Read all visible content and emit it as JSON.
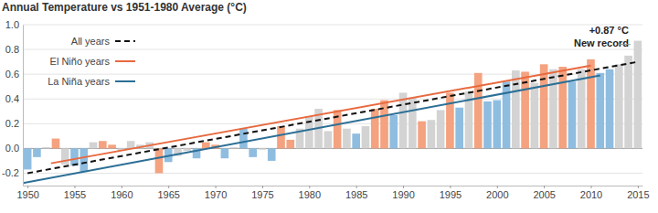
{
  "chart_data": {
    "type": "bar",
    "title": "Annual Temperature vs 1951-1980 Average (°C)",
    "x": [
      1950,
      1951,
      1952,
      1953,
      1954,
      1955,
      1956,
      1957,
      1958,
      1959,
      1960,
      1961,
      1962,
      1963,
      1964,
      1965,
      1966,
      1967,
      1968,
      1969,
      1970,
      1971,
      1972,
      1973,
      1974,
      1975,
      1976,
      1977,
      1978,
      1979,
      1980,
      1981,
      1982,
      1983,
      1984,
      1985,
      1986,
      1987,
      1988,
      1989,
      1990,
      1991,
      1992,
      1993,
      1994,
      1995,
      1996,
      1997,
      1998,
      1999,
      2000,
      2001,
      2002,
      2003,
      2004,
      2005,
      2006,
      2007,
      2008,
      2009,
      2010,
      2011,
      2012,
      2013,
      2014,
      2015
    ],
    "values": [
      -0.17,
      -0.07,
      0.01,
      0.08,
      -0.13,
      -0.14,
      -0.19,
      0.05,
      0.06,
      0.03,
      -0.02,
      0.06,
      0.03,
      0.05,
      -0.2,
      -0.11,
      -0.06,
      -0.02,
      -0.08,
      0.05,
      0.03,
      -0.08,
      0.01,
      0.16,
      -0.07,
      -0.01,
      -0.1,
      0.18,
      0.07,
      0.16,
      0.26,
      0.32,
      0.14,
      0.31,
      0.16,
      0.12,
      0.18,
      0.32,
      0.39,
      0.27,
      0.45,
      0.41,
      0.22,
      0.23,
      0.31,
      0.45,
      0.33,
      0.46,
      0.61,
      0.38,
      0.39,
      0.54,
      0.63,
      0.62,
      0.53,
      0.68,
      0.64,
      0.66,
      0.54,
      0.64,
      0.72,
      0.61,
      0.64,
      0.68,
      0.75,
      0.87
    ],
    "colors": [
      "#8fbde0",
      "#8fbde0",
      "#d3d3d3",
      "#f4a27f",
      "#d3d3d3",
      "#8fbde0",
      "#8fbde0",
      "#d3d3d3",
      "#f4a27f",
      "#f4a27f",
      "#d3d3d3",
      "#d3d3d3",
      "#d3d3d3",
      "#d3d3d3",
      "#f4a27f",
      "#8fbde0",
      "#d3d3d3",
      "#d3d3d3",
      "#8fbde0",
      "#f4a27f",
      "#f4a27f",
      "#8fbde0",
      "#d3d3d3",
      "#8fbde0",
      "#8fbde0",
      "#d3d3d3",
      "#8fbde0",
      "#f4a27f",
      "#f4a27f",
      "#d3d3d3",
      "#d3d3d3",
      "#d3d3d3",
      "#d3d3d3",
      "#f4a27f",
      "#d3d3d3",
      "#8fbde0",
      "#d3d3d3",
      "#f4a27f",
      "#f4a27f",
      "#8fbde0",
      "#d3d3d3",
      "#d3d3d3",
      "#f4a27f",
      "#d3d3d3",
      "#d3d3d3",
      "#f4a27f",
      "#8fbde0",
      "#d3d3d3",
      "#f4a27f",
      "#8fbde0",
      "#8fbde0",
      "#8fbde0",
      "#d3d3d3",
      "#f4a27f",
      "#d3d3d3",
      "#f4a27f",
      "#d3d3d3",
      "#f4a27f",
      "#8fbde0",
      "#d3d3d3",
      "#f4a27f",
      "#8fbde0",
      "#8fbde0",
      "#d3d3d3",
      "#d3d3d3",
      "#d3d3d3"
    ],
    "series": [
      {
        "name": "All years",
        "type": "line",
        "line_style": "dashed",
        "color": "#111111",
        "x": [
          1950,
          2015
        ],
        "values": [
          -0.2,
          0.7
        ]
      },
      {
        "name": "El Niño years",
        "type": "line",
        "line_style": "solid",
        "color": "#e8693f",
        "x": [
          1952.5,
          2010
        ],
        "values": [
          -0.12,
          0.67
        ]
      },
      {
        "name": "La Niña years",
        "type": "line",
        "line_style": "solid",
        "color": "#2c6f96",
        "x": [
          1949.5,
          2011
        ],
        "values": [
          -0.28,
          0.59
        ]
      }
    ],
    "annotations": [
      "+0.87 °C",
      "New record"
    ],
    "xlim": [
      1949.5,
      2015.5
    ],
    "xticks": [
      1950,
      1955,
      1960,
      1965,
      1970,
      1975,
      1980,
      1985,
      1990,
      1995,
      2000,
      2005,
      2010,
      2015
    ],
    "ylim": [
      -0.3,
      1.0
    ],
    "yticks": [
      -0.2,
      {
        "value": 0,
        "label": "0.0"
      },
      0.2,
      0.4,
      0.6,
      0.8,
      {
        "value": 1,
        "label": "1.0"
      }
    ],
    "grid": true,
    "legend": "upper left"
  }
}
